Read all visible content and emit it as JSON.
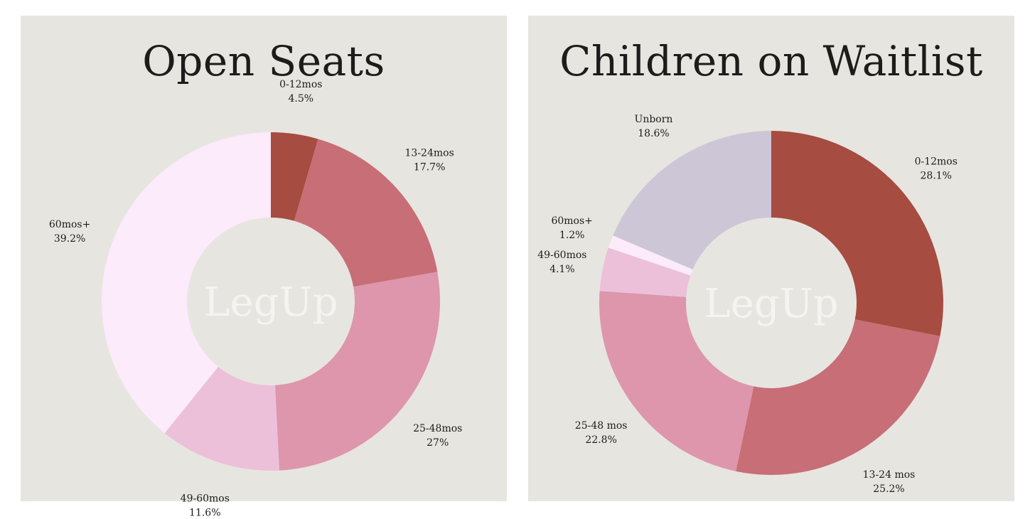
{
  "chart_data": [
    {
      "type": "pie",
      "title": "Open Seats",
      "center_logo": "LegUp",
      "slices": [
        {
          "label": "0-12mos",
          "value_text": "4.5%",
          "value": 4.5,
          "color": "#a64c40"
        },
        {
          "label": "13-24mos",
          "value_text": "17.7%",
          "value": 17.7,
          "color": "#c76e76"
        },
        {
          "label": "25-48mos",
          "value_text": "27%",
          "value": 27.0,
          "color": "#dd96ac"
        },
        {
          "label": "49-60mos",
          "value_text": "11.6%",
          "value": 11.6,
          "color": "#ecc0d8"
        },
        {
          "label": "60mos+",
          "value_text": "39.2%",
          "value": 39.2,
          "color": "#fcebfb"
        }
      ]
    },
    {
      "type": "pie",
      "title": "Children on Waitlist",
      "center_logo": "LegUp",
      "slices": [
        {
          "label": "0-12mos",
          "value_text": "28.1%",
          "value": 28.1,
          "color": "#a64c40"
        },
        {
          "label": "13-24 mos",
          "value_text": "25.2%",
          "value": 25.2,
          "color": "#c76e76"
        },
        {
          "label": "25-48 mos",
          "value_text": "22.8%",
          "value": 22.8,
          "color": "#dd96ac"
        },
        {
          "label": "49-60mos",
          "value_text": "4.1%",
          "value": 4.1,
          "color": "#ecc0d8"
        },
        {
          "label": "60mos+",
          "value_text": "1.2%",
          "value": 1.2,
          "color": "#fcebfb"
        },
        {
          "label": "Unborn",
          "value_text": "18.6%",
          "value": 18.6,
          "color": "#cdc6d7"
        }
      ]
    }
  ]
}
